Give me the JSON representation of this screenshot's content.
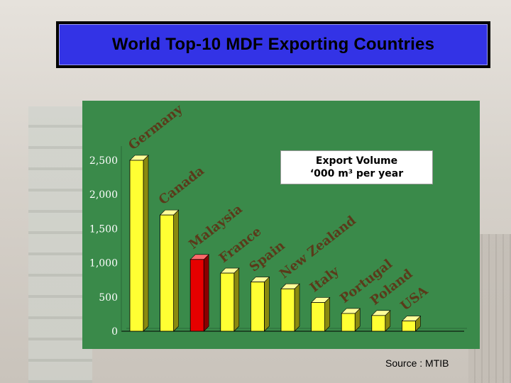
{
  "slide": {
    "title": "World Top-10 MDF Exporting Countries",
    "source": "Source : MTIB"
  },
  "colors": {
    "panel": "#3a8a4a",
    "title_bg": "#3333e6",
    "bar_default": "#ffff33",
    "bar_highlight": "#e60000",
    "axis_text": "#ffffff",
    "category_label": "#5a3a1a"
  },
  "chart_data": {
    "type": "bar",
    "categories": [
      "Germany",
      "Canada",
      "Malaysia",
      "France",
      "Spain",
      "New Zealand",
      "Italy",
      "Portugal",
      "Poland",
      "USA"
    ],
    "values": [
      2500,
      1700,
      1050,
      850,
      720,
      620,
      420,
      260,
      230,
      150
    ],
    "highlight": "Malaysia",
    "title": "",
    "legend_lines": [
      "Export Volume",
      "‘000 m³ per year"
    ],
    "yticks": [
      "0",
      "500",
      "1,000",
      "1,500",
      "2,000",
      "2,500"
    ],
    "ylim": [
      0,
      2500
    ],
    "grid": false,
    "legend_position": "top-right"
  }
}
